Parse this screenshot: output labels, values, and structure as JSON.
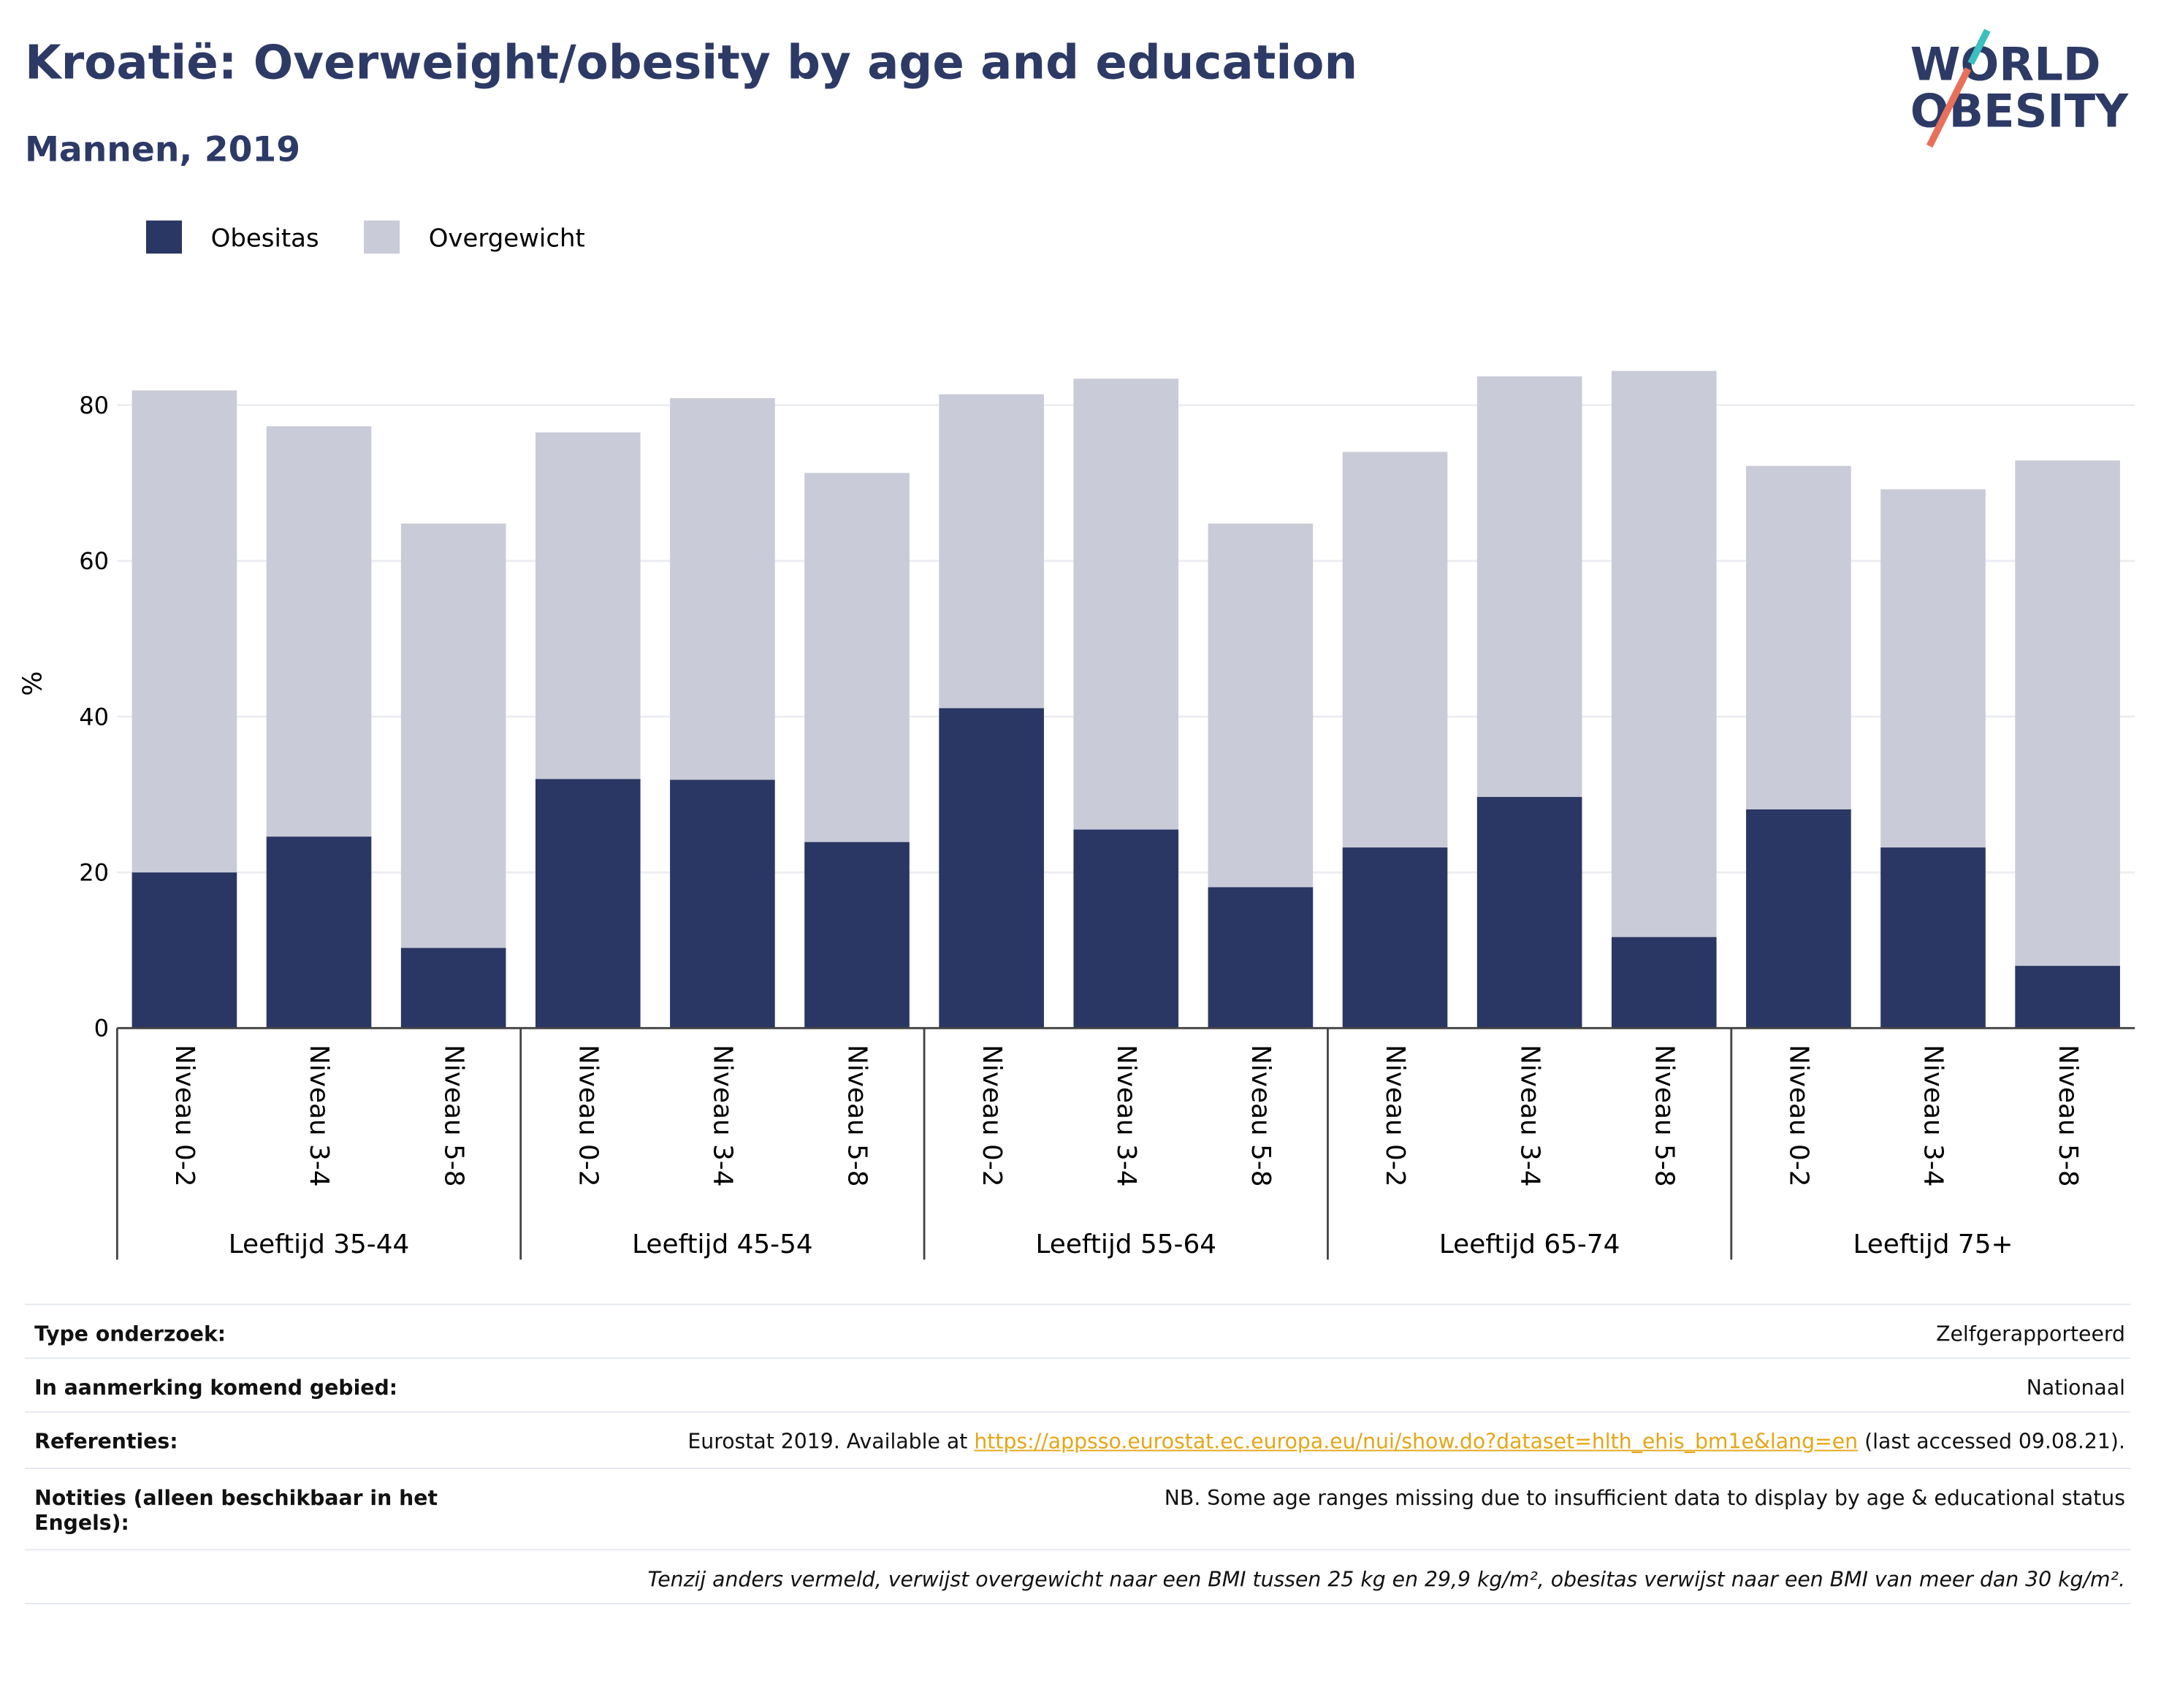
{
  "header": {
    "title": "Kroatië: Overweight/obesity by age and education",
    "subtitle": "Mannen, 2019",
    "logo": [
      "WORLD",
      "OBESITY"
    ]
  },
  "chart_data": {
    "type": "bar",
    "stacked": true,
    "ylabel": "%",
    "categories": [
      "Niveau 0-2",
      "Niveau 3-4",
      "Niveau 5-8",
      "Niveau 0-2",
      "Niveau 3-4",
      "Niveau 5-8",
      "Niveau 0-2",
      "Niveau 3-4",
      "Niveau 5-8",
      "Niveau 0-2",
      "Niveau 3-4",
      "Niveau 5-8",
      "Niveau 0-2",
      "Niveau 3-4",
      "Niveau 5-8"
    ],
    "groups": [
      "Leeftijd 35-44",
      "Leeftijd 45-54",
      "Leeftijd 55-64",
      "Leeftijd 65-74",
      "Leeftijd 75+"
    ],
    "series": [
      {
        "name": "Obesitas",
        "color": "#2a3663",
        "values": [
          20.0,
          24.6,
          10.3,
          32.0,
          31.9,
          23.9,
          41.1,
          25.5,
          18.1,
          23.2,
          29.7,
          11.7,
          28.1,
          23.2,
          8.0
        ]
      },
      {
        "name": "Overgewicht",
        "color": "#c9cbd8",
        "values": [
          61.9,
          52.7,
          54.5,
          44.5,
          49.0,
          47.4,
          40.3,
          57.9,
          46.7,
          50.8,
          54.0,
          72.7,
          44.1,
          46.0,
          64.9
        ]
      }
    ],
    "ylim": [
      0,
      90
    ],
    "yticks": [
      0,
      20,
      40,
      60,
      80
    ],
    "grid": true,
    "legend": "top-left"
  },
  "info": {
    "rows": [
      {
        "label": "Type onderzoek:",
        "value": "Zelfgerapporteerd"
      },
      {
        "label": "In aanmerking komend gebied:",
        "value": "Nationaal"
      }
    ],
    "reference": {
      "label": "Referenties:",
      "before": "Eurostat 2019. Available at ",
      "link": "https://appsso.eurostat.ec.europa.eu/nui/show.do?dataset=hlth_ehis_bm1e&lang=en",
      "after": " (last accessed 09.08.21)."
    },
    "notes": {
      "label": "Notities (alleen beschikbaar in het Engels):",
      "value": "NB. Some age ranges missing due to insufficient data to display by age & educational status"
    },
    "footnote": "Tenzij anders vermeld, verwijst overgewicht naar een BMI tussen 25 kg en 29,9 kg/m², obesitas verwijst naar een BMI van meer dan 30 kg/m²."
  }
}
